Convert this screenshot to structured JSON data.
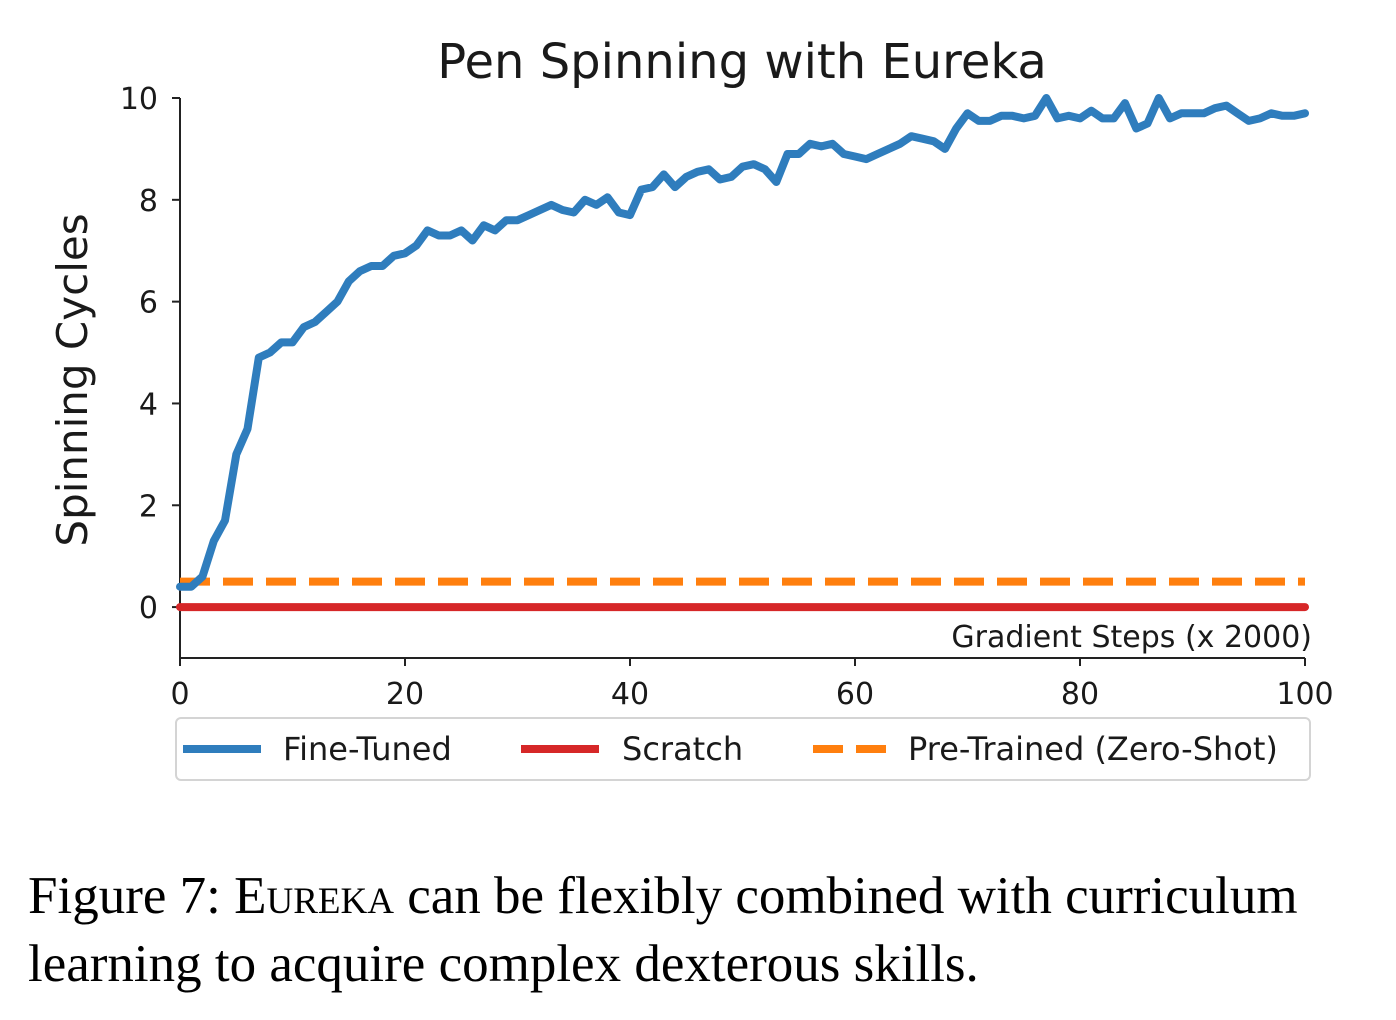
{
  "chart_data": {
    "type": "line",
    "title": "Pen Spinning with Eureka",
    "xlabel": "Gradient Steps (x 2000)",
    "ylabel": "Spinning Cycles",
    "xlim": [
      0,
      100
    ],
    "ylim": [
      -1,
      10
    ],
    "xticks": [
      0,
      20,
      40,
      60,
      80,
      100
    ],
    "yticks": [
      0,
      2,
      4,
      6,
      8,
      10
    ],
    "legend_position": "bottom",
    "series": [
      {
        "name": "Fine-Tuned",
        "color": "#2f7dbd",
        "style": "solid",
        "x": [
          0,
          1,
          2,
          3,
          4,
          5,
          6,
          7,
          8,
          9,
          10,
          11,
          12,
          13,
          14,
          15,
          16,
          17,
          18,
          19,
          20,
          21,
          22,
          23,
          24,
          25,
          26,
          27,
          28,
          29,
          30,
          31,
          32,
          33,
          34,
          35,
          36,
          37,
          38,
          39,
          40,
          41,
          42,
          43,
          44,
          45,
          46,
          47,
          48,
          49,
          50,
          51,
          52,
          53,
          54,
          55,
          56,
          57,
          58,
          59,
          60,
          61,
          62,
          63,
          64,
          65,
          66,
          67,
          68,
          69,
          70,
          71,
          72,
          73,
          74,
          75,
          76,
          77,
          78,
          79,
          80,
          81,
          82,
          83,
          84,
          85,
          86,
          87,
          88,
          89,
          90,
          91,
          92,
          93,
          94,
          95,
          96,
          97,
          98,
          99,
          100
        ],
        "y": [
          0.4,
          0.4,
          0.6,
          1.3,
          1.7,
          3.0,
          3.5,
          4.9,
          5.0,
          5.2,
          5.2,
          5.5,
          5.6,
          5.8,
          6.0,
          6.4,
          6.6,
          6.7,
          6.7,
          6.9,
          6.95,
          7.1,
          7.4,
          7.3,
          7.3,
          7.4,
          7.2,
          7.5,
          7.4,
          7.6,
          7.6,
          7.7,
          7.8,
          7.9,
          7.8,
          7.75,
          8.0,
          7.9,
          8.05,
          7.75,
          7.7,
          8.2,
          8.25,
          8.5,
          8.25,
          8.45,
          8.55,
          8.6,
          8.4,
          8.45,
          8.65,
          8.7,
          8.6,
          8.35,
          8.9,
          8.9,
          9.1,
          9.05,
          9.1,
          8.9,
          8.85,
          8.8,
          8.9,
          9.0,
          9.1,
          9.25,
          9.2,
          9.15,
          9.0,
          9.4,
          9.7,
          9.55,
          9.55,
          9.65,
          9.65,
          9.6,
          9.65,
          10.0,
          9.6,
          9.65,
          9.6,
          9.75,
          9.6,
          9.6,
          9.9,
          9.4,
          9.5,
          10.0,
          9.6,
          9.7,
          9.7,
          9.7,
          9.8,
          9.85,
          9.7,
          9.55,
          9.6,
          9.7,
          9.65,
          9.65,
          9.7
        ]
      },
      {
        "name": "Scratch",
        "color": "#d62728",
        "style": "solid",
        "x": [
          0,
          100
        ],
        "y": [
          0,
          0
        ]
      },
      {
        "name": "Pre-Trained (Zero-Shot)",
        "color": "#ff7f0e",
        "style": "dashed",
        "x": [
          0,
          100
        ],
        "y": [
          0.5,
          0.5
        ]
      }
    ]
  },
  "caption": {
    "prefix": "Figure 7: ",
    "smallcaps": "Eureka",
    "rest": " can be flexibly combined with curriculum learning to acquire complex dexterous skills."
  }
}
